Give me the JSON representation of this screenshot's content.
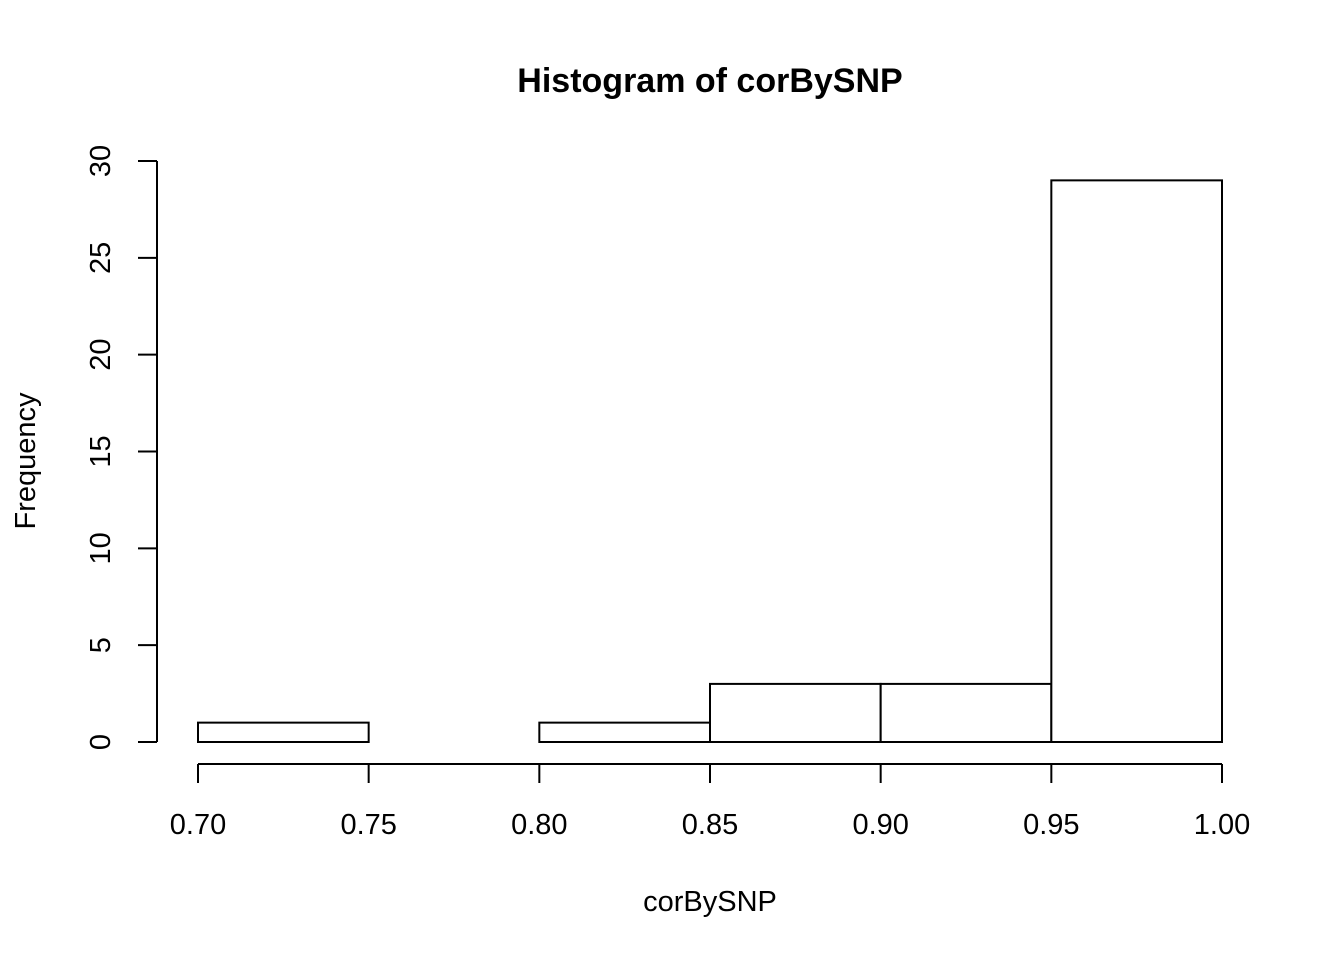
{
  "chart_data": {
    "type": "bar",
    "title": "Histogram of corBySNP",
    "xlabel": "corBySNP",
    "ylabel": "Frequency",
    "bins": [
      {
        "x0": 0.7,
        "x1": 0.75,
        "count": 1
      },
      {
        "x0": 0.75,
        "x1": 0.8,
        "count": 0
      },
      {
        "x0": 0.8,
        "x1": 0.85,
        "count": 1
      },
      {
        "x0": 0.85,
        "x1": 0.9,
        "count": 3
      },
      {
        "x0": 0.9,
        "x1": 0.95,
        "count": 3
      },
      {
        "x0": 0.95,
        "x1": 1.0,
        "count": 29
      }
    ],
    "xlim": [
      0.7,
      1.0
    ],
    "ylim": [
      0,
      30
    ],
    "x_ticks": [
      0.7,
      0.75,
      0.8,
      0.85,
      0.9,
      0.95,
      1.0
    ],
    "x_tick_labels": [
      "0.70",
      "0.75",
      "0.80",
      "0.85",
      "0.90",
      "0.95",
      "1.00"
    ],
    "y_ticks": [
      0,
      5,
      10,
      15,
      20,
      25,
      30
    ],
    "y_tick_labels": [
      "0",
      "5",
      "10",
      "15",
      "20",
      "25",
      "30"
    ],
    "grid": false,
    "bar_fill": "#ffffff",
    "bar_stroke": "#000000"
  }
}
